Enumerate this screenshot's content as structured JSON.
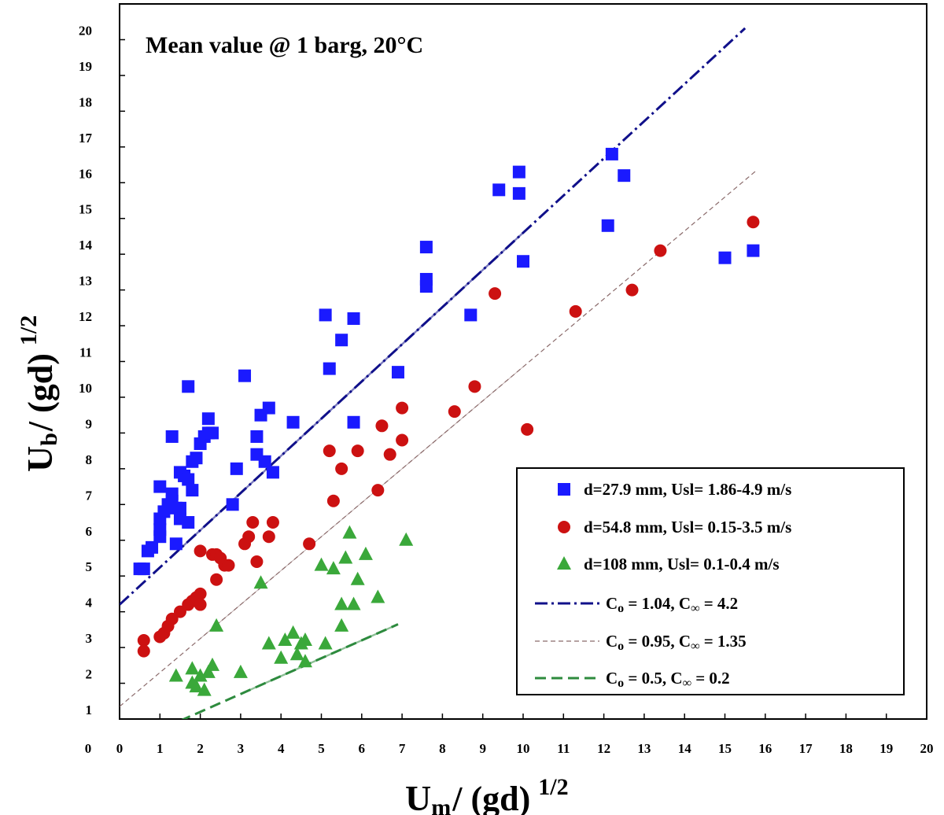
{
  "chart_data": {
    "type": "scatter",
    "title": "Mean value @ 1 barg, 20°C",
    "xlabel": {
      "main": "U",
      "sub": "m",
      "rest": "/ (gd)",
      "sup": "1/2"
    },
    "ylabel": {
      "main": "U",
      "sub": "b",
      "rest": "/ (gd)",
      "sup": "1/2"
    },
    "xlim": [
      0,
      20
    ],
    "ylim": [
      1,
      21
    ],
    "xticks": [
      "0",
      "1",
      "2",
      "3",
      "4",
      "5",
      "6",
      "7",
      "8",
      "9",
      "10",
      "11",
      "12",
      "13",
      "14",
      "15",
      "16",
      "17",
      "18",
      "19",
      "20"
    ],
    "yticks": [
      "0",
      "1",
      "2",
      "3",
      "4",
      "5",
      "6",
      "7",
      "8",
      "9",
      "10",
      "11",
      "12",
      "13",
      "14",
      "15",
      "16",
      "17",
      "18",
      "19",
      "20"
    ],
    "x_origin_label": "0",
    "legend_position": "bottom-right",
    "grid": false,
    "series": [
      {
        "name": "d=27.9 mm, Usl= 1.86-4.9 m/s",
        "marker": "square",
        "color": "#1a1aff",
        "points": [
          [
            0.5,
            5.2
          ],
          [
            0.6,
            5.2
          ],
          [
            0.7,
            5.7
          ],
          [
            0.8,
            5.8
          ],
          [
            1.0,
            6.1
          ],
          [
            1.0,
            6.3
          ],
          [
            1.0,
            6.6
          ],
          [
            1.1,
            6.8
          ],
          [
            1.2,
            7.0
          ],
          [
            1.3,
            7.3
          ],
          [
            1.0,
            7.5
          ],
          [
            1.3,
            7.1
          ],
          [
            1.4,
            6.9
          ],
          [
            1.5,
            6.6
          ],
          [
            1.5,
            6.9
          ],
          [
            1.4,
            5.9
          ],
          [
            1.5,
            7.9
          ],
          [
            1.6,
            7.8
          ],
          [
            1.7,
            6.5
          ],
          [
            1.7,
            7.7
          ],
          [
            1.8,
            7.4
          ],
          [
            1.8,
            8.2
          ],
          [
            1.9,
            8.3
          ],
          [
            2.0,
            8.7
          ],
          [
            2.1,
            8.9
          ],
          [
            2.2,
            9.0
          ],
          [
            2.3,
            9.0
          ],
          [
            2.2,
            9.4
          ],
          [
            1.7,
            10.3
          ],
          [
            1.3,
            8.9
          ],
          [
            2.8,
            7.0
          ],
          [
            2.9,
            8.0
          ],
          [
            3.1,
            10.6
          ],
          [
            3.4,
            8.4
          ],
          [
            3.4,
            8.9
          ],
          [
            3.5,
            9.5
          ],
          [
            3.6,
            8.2
          ],
          [
            3.7,
            9.7
          ],
          [
            3.8,
            7.9
          ],
          [
            4.3,
            9.3
          ],
          [
            5.1,
            12.3
          ],
          [
            5.2,
            10.8
          ],
          [
            5.5,
            11.6
          ],
          [
            5.8,
            12.2
          ],
          [
            5.8,
            9.3
          ],
          [
            6.9,
            10.7
          ],
          [
            7.6,
            13.1
          ],
          [
            7.6,
            13.3
          ],
          [
            7.6,
            14.2
          ],
          [
            8.7,
            12.3
          ],
          [
            9.4,
            15.8
          ],
          [
            9.9,
            16.3
          ],
          [
            9.9,
            15.7
          ],
          [
            10.0,
            13.8
          ],
          [
            12.1,
            14.8
          ],
          [
            12.2,
            16.8
          ],
          [
            12.5,
            16.2
          ],
          [
            15.0,
            13.9
          ],
          [
            15.7,
            14.1
          ]
        ]
      },
      {
        "name": "d=54.8 mm, Usl= 0.15-3.5 m/s",
        "marker": "circle",
        "color": "#cc1111",
        "points": [
          [
            0.6,
            3.2
          ],
          [
            0.6,
            2.9
          ],
          [
            1.0,
            3.3
          ],
          [
            1.1,
            3.4
          ],
          [
            1.2,
            3.6
          ],
          [
            1.3,
            3.8
          ],
          [
            1.5,
            4.0
          ],
          [
            1.7,
            4.2
          ],
          [
            1.8,
            4.3
          ],
          [
            1.9,
            4.4
          ],
          [
            2.0,
            4.5
          ],
          [
            2.0,
            4.2
          ],
          [
            2.0,
            5.7
          ],
          [
            2.3,
            5.6
          ],
          [
            2.4,
            5.6
          ],
          [
            2.5,
            5.5
          ],
          [
            2.6,
            5.3
          ],
          [
            2.7,
            5.3
          ],
          [
            2.4,
            4.9
          ],
          [
            3.1,
            5.9
          ],
          [
            3.2,
            6.1
          ],
          [
            3.3,
            6.5
          ],
          [
            3.4,
            5.4
          ],
          [
            3.7,
            6.1
          ],
          [
            3.8,
            6.5
          ],
          [
            4.7,
            5.9
          ],
          [
            5.2,
            8.5
          ],
          [
            5.3,
            7.1
          ],
          [
            5.5,
            8.0
          ],
          [
            5.9,
            8.5
          ],
          [
            6.4,
            7.4
          ],
          [
            6.5,
            9.2
          ],
          [
            6.7,
            8.4
          ],
          [
            7.0,
            8.8
          ],
          [
            7.0,
            9.7
          ],
          [
            8.8,
            10.3
          ],
          [
            8.3,
            9.6
          ],
          [
            9.3,
            12.9
          ],
          [
            10.1,
            9.1
          ],
          [
            11.3,
            12.4
          ],
          [
            12.7,
            13.0
          ],
          [
            13.4,
            14.1
          ],
          [
            15.7,
            14.9
          ]
        ]
      },
      {
        "name": "d=108 mm, Usl= 0.1-0.4 m/s",
        "marker": "triangle",
        "color": "#3aa83a",
        "points": [
          [
            1.4,
            2.2
          ],
          [
            1.8,
            2.0
          ],
          [
            1.8,
            2.4
          ],
          [
            1.9,
            1.9
          ],
          [
            2.0,
            2.2
          ],
          [
            2.1,
            1.8
          ],
          [
            2.2,
            2.3
          ],
          [
            2.3,
            2.5
          ],
          [
            2.4,
            3.6
          ],
          [
            3.0,
            2.3
          ],
          [
            3.5,
            4.8
          ],
          [
            3.7,
            3.1
          ],
          [
            4.0,
            2.7
          ],
          [
            4.1,
            3.2
          ],
          [
            4.3,
            3.4
          ],
          [
            4.4,
            2.8
          ],
          [
            4.5,
            3.1
          ],
          [
            4.6,
            3.2
          ],
          [
            4.6,
            2.6
          ],
          [
            5.0,
            5.3
          ],
          [
            5.1,
            3.1
          ],
          [
            5.3,
            5.2
          ],
          [
            5.5,
            4.2
          ],
          [
            5.5,
            3.6
          ],
          [
            5.6,
            5.5
          ],
          [
            5.7,
            6.2
          ],
          [
            5.8,
            4.2
          ],
          [
            5.9,
            4.9
          ],
          [
            6.1,
            5.6
          ],
          [
            6.4,
            4.4
          ],
          [
            7.1,
            6.0
          ]
        ]
      }
    ],
    "fits": [
      {
        "name": "C₀ = 1.04, C∞ = 4.2",
        "style": "dash-dot",
        "color": "#10108a",
        "c0": 1.04,
        "cinf": 4.2,
        "x_range": [
          0,
          15.5
        ],
        "x_solid": [
          1.3,
          10.0
        ],
        "legend_parts": [
          "C",
          "o",
          " = 1.04, C",
          "∞",
          " = 4.2"
        ]
      },
      {
        "name": "C₀ = 0.95, C∞ = 1.35",
        "style": "thin-dash",
        "color": "#8a6a6a",
        "c0": 0.95,
        "cinf": 1.35,
        "x_range": [
          0,
          15.8
        ],
        "x_solid": [
          2.0,
          10.0
        ],
        "legend_parts": [
          "C",
          "o",
          " = 0.95, C",
          "∞",
          " = 1.35"
        ]
      },
      {
        "name": "C₀ = 0.5, C∞ = 0.2",
        "style": "dash",
        "color": "#2e8b3e",
        "c0": 0.5,
        "cinf": 0.2,
        "x_range": [
          0,
          6.9
        ],
        "x_solid": [
          3.0,
          6.9
        ],
        "legend_parts": [
          "C",
          "o",
          " = 0.5, C",
          "∞",
          " = 0.2"
        ]
      }
    ]
  }
}
